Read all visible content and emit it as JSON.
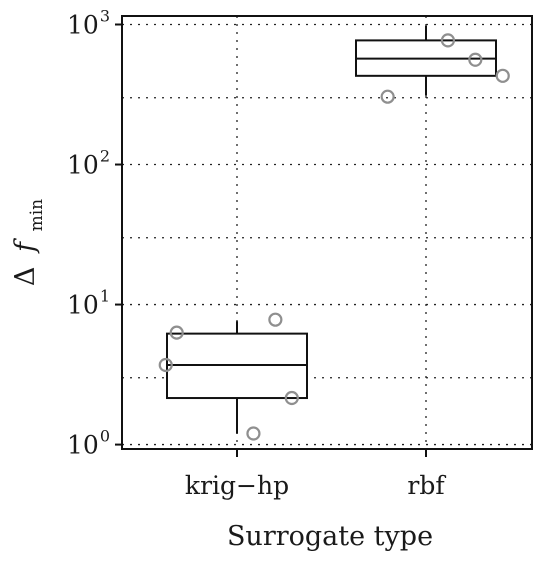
{
  "chart_data": {
    "type": "box",
    "title": "",
    "xlabel": "Surrogate type",
    "ylabel": {
      "prefix": "Δ",
      "symbol": "f",
      "subscript": "min"
    },
    "yscale": "log10",
    "ylim": [
      0.93,
      1150
    ],
    "grid": true,
    "categories": [
      "krig−hp",
      "rbf"
    ],
    "yticks": [
      {
        "value": 1,
        "base": "10",
        "exp": "0"
      },
      {
        "value": 10,
        "base": "10",
        "exp": "1"
      },
      {
        "value": 100,
        "base": "10",
        "exp": "2"
      },
      {
        "value": 1000,
        "base": "10",
        "exp": "3"
      }
    ],
    "boxes": [
      {
        "category": "krig−hp",
        "q1": 2.15,
        "median": 3.7,
        "q3": 6.2,
        "whisker_low": 1.2,
        "whisker_high": 7.6
      },
      {
        "category": "rbf",
        "q1": 430,
        "median": 570,
        "q3": 770,
        "whisker_low": 310,
        "whisker_high": 980
      }
    ],
    "points": [
      {
        "category": "krig−hp",
        "jitter": -0.13,
        "value": 3.7
      },
      {
        "category": "krig−hp",
        "jitter": -0.11,
        "value": 6.3
      },
      {
        "category": "krig−hp",
        "jitter": 0.03,
        "value": 1.2
      },
      {
        "category": "krig−hp",
        "jitter": 0.07,
        "value": 7.8
      },
      {
        "category": "krig−hp",
        "jitter": 0.1,
        "value": 2.15
      },
      {
        "category": "rbf",
        "jitter": -0.07,
        "value": 305
      },
      {
        "category": "rbf",
        "jitter": 0.04,
        "value": 770
      },
      {
        "category": "rbf",
        "jitter": 0.09,
        "value": 560
      },
      {
        "category": "rbf",
        "jitter": 0.14,
        "value": 430
      }
    ]
  }
}
